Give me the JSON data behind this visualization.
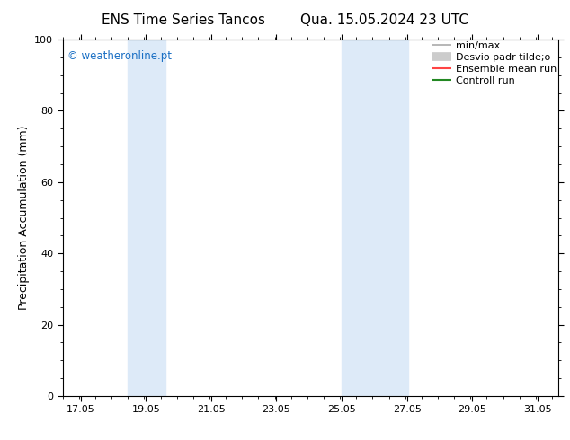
{
  "title_left": "ENS Time Series Tancos",
  "title_right": "Qua. 15.05.2024 23 UTC",
  "ylabel": "Precipitation Accumulation (mm)",
  "ylim": [
    0,
    100
  ],
  "xlim": [
    16.5,
    31.7
  ],
  "xticks": [
    17.05,
    19.05,
    21.05,
    23.05,
    25.05,
    27.05,
    29.05,
    31.05
  ],
  "xtick_labels": [
    "17.05",
    "19.05",
    "21.05",
    "23.05",
    "25.05",
    "27.05",
    "29.05",
    "31.05"
  ],
  "yticks": [
    0,
    20,
    40,
    60,
    80,
    100
  ],
  "shaded_bands": [
    {
      "xmin": 18.5,
      "xmax": 19.65,
      "color": "#ddeaf8",
      "alpha": 1.0
    },
    {
      "xmin": 25.05,
      "xmax": 25.9,
      "color": "#ddeaf8",
      "alpha": 1.0
    },
    {
      "xmin": 25.9,
      "xmax": 27.1,
      "color": "#ddeaf8",
      "alpha": 1.0
    }
  ],
  "legend_items": [
    {
      "label": "min/max",
      "color": "#aaaaaa",
      "lw": 1.2,
      "ls": "-"
    },
    {
      "label": "Desvio padr tilde;o",
      "color": "#cccccc",
      "lw": 7,
      "ls": "-"
    },
    {
      "label": "Ensemble mean run",
      "color": "#ff4444",
      "lw": 1.5,
      "ls": "-"
    },
    {
      "label": "Controll run",
      "color": "#228822",
      "lw": 1.5,
      "ls": "-"
    }
  ],
  "watermark_text": "© weatheronline.pt",
  "watermark_color": "#1a6fc4",
  "background_color": "#ffffff",
  "title_fontsize": 11,
  "tick_fontsize": 8,
  "ylabel_fontsize": 9,
  "legend_fontsize": 8
}
